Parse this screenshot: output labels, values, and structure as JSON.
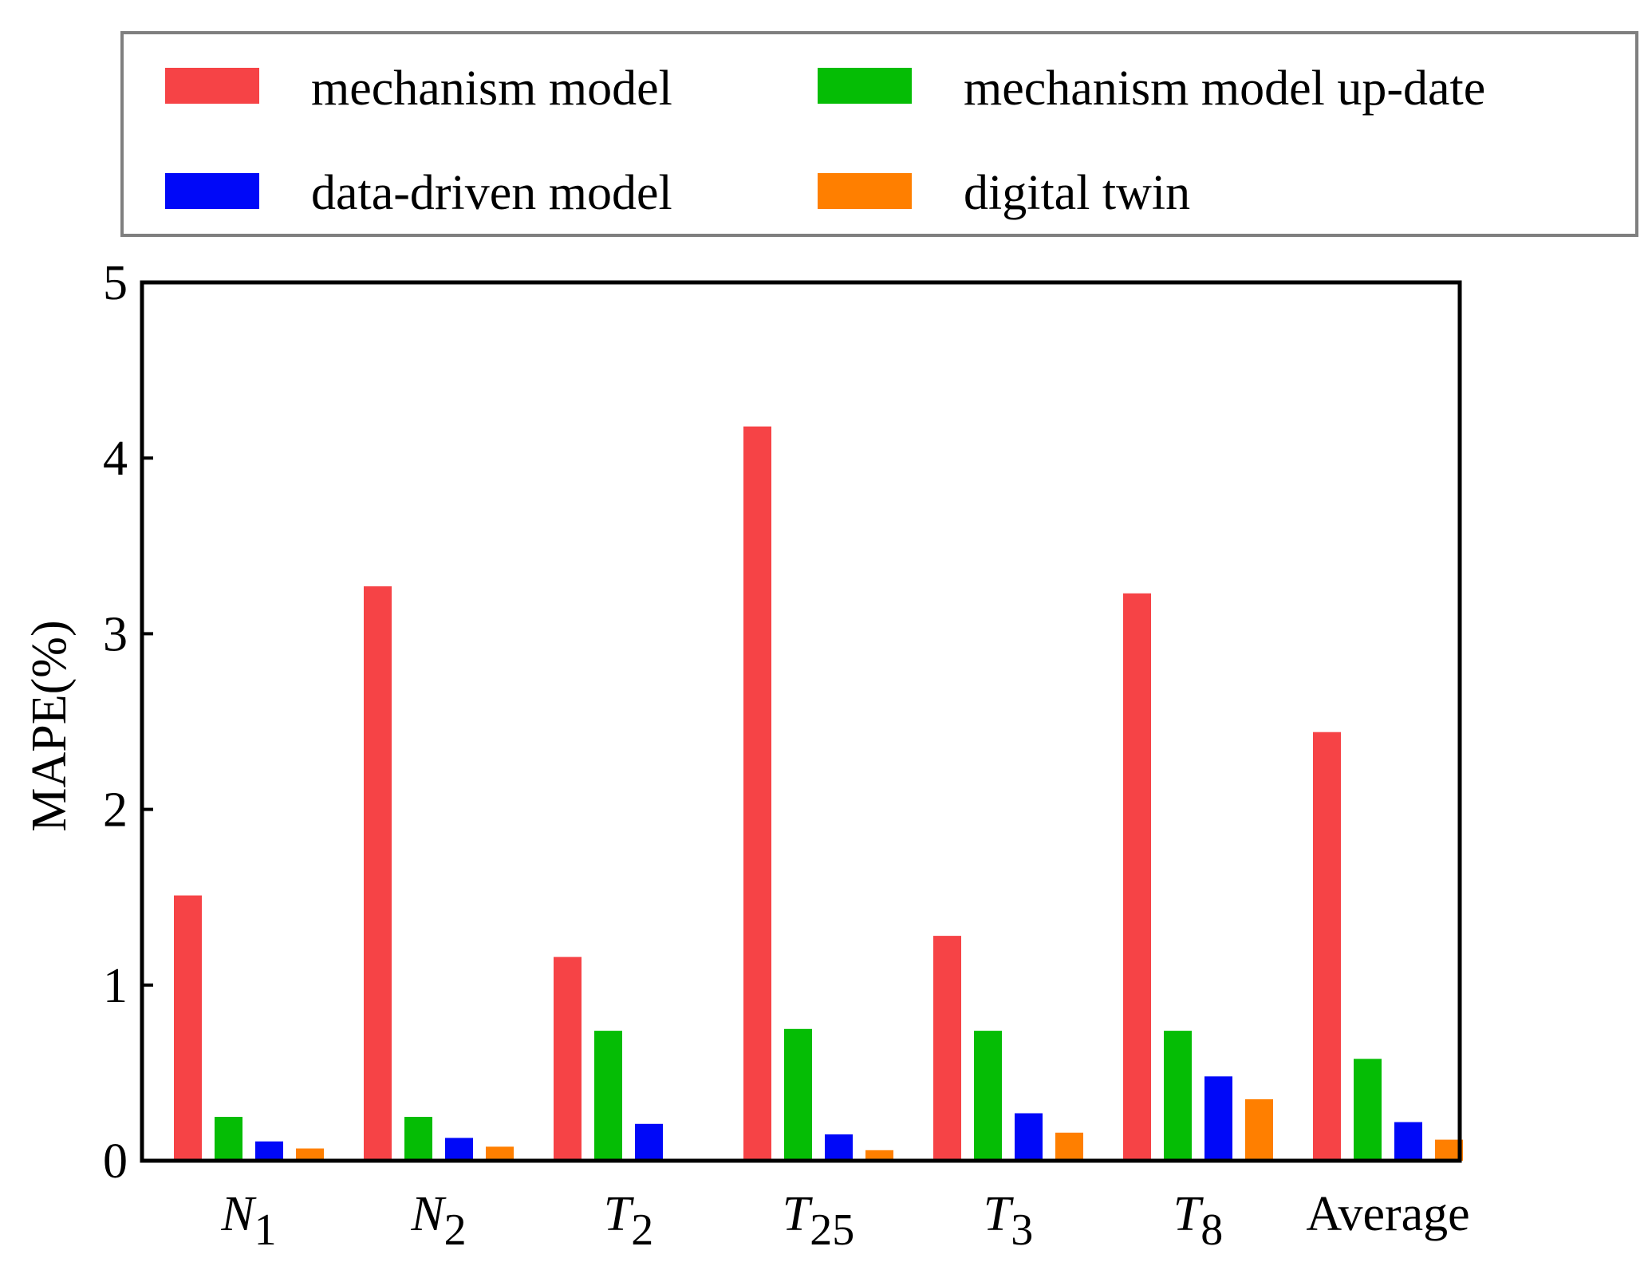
{
  "chart_data": {
    "type": "bar",
    "title": "",
    "xlabel": "",
    "ylabel": "MAPE(%)",
    "ylim": [
      0,
      5
    ],
    "yticks": [
      0,
      1,
      2,
      3,
      4,
      5
    ],
    "legend_position": "top",
    "categories": [
      {
        "base": "N",
        "sub": "1",
        "italic": true
      },
      {
        "base": "N",
        "sub": "2",
        "italic": true
      },
      {
        "base": "T",
        "sub": "2",
        "italic": true
      },
      {
        "base": "T",
        "sub": "25",
        "italic": true
      },
      {
        "base": "T",
        "sub": "3",
        "italic": true
      },
      {
        "base": "T",
        "sub": "8",
        "italic": true
      },
      {
        "base": "Average",
        "sub": "",
        "italic": false
      }
    ],
    "series": [
      {
        "name": "mechanism model",
        "color": "#f64346",
        "values": [
          1.51,
          3.27,
          1.16,
          4.18,
          1.28,
          3.23,
          2.44
        ]
      },
      {
        "name": "mechanism model up-date",
        "color": "#05bd05",
        "values": [
          0.25,
          0.25,
          0.74,
          0.75,
          0.74,
          0.74,
          0.58
        ]
      },
      {
        "name": "data-driven model",
        "color": "#0008f8",
        "values": [
          0.11,
          0.13,
          0.21,
          0.15,
          0.27,
          0.48,
          0.22
        ]
      },
      {
        "name": "digital twin",
        "color": "#ff7f00",
        "values": [
          0.07,
          0.08,
          0.0,
          0.06,
          0.16,
          0.35,
          0.12
        ]
      }
    ]
  }
}
